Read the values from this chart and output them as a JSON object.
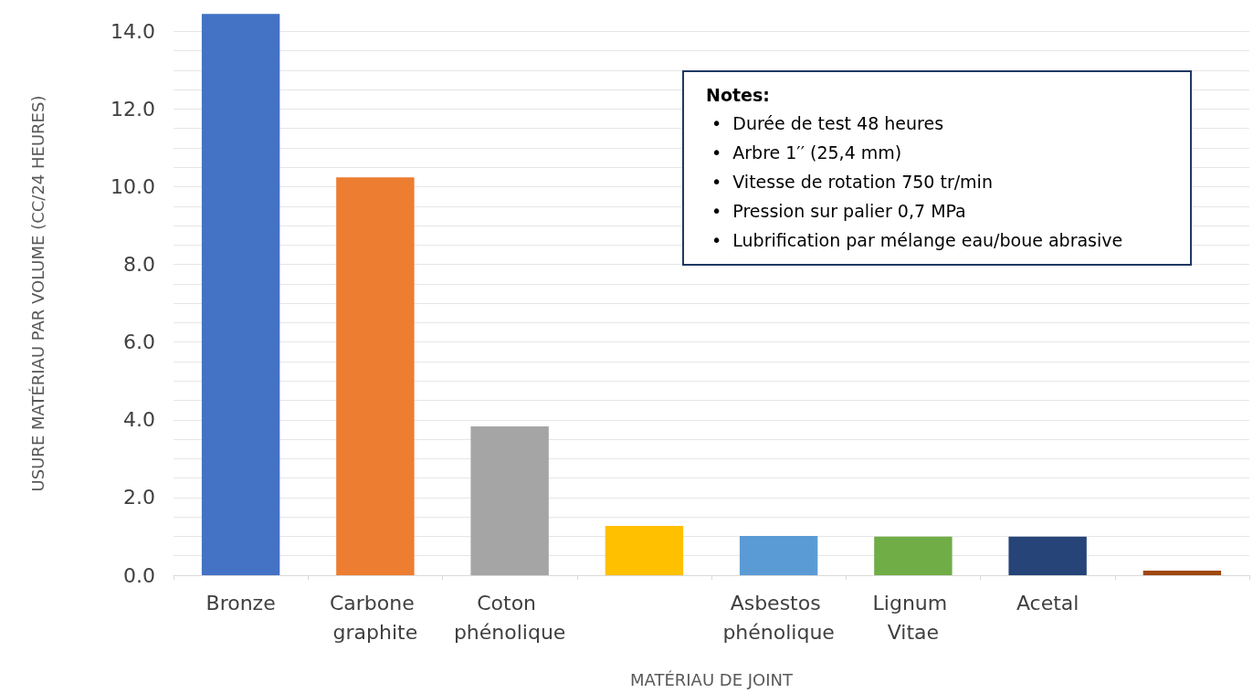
{
  "chart_data": {
    "type": "bar",
    "xlabel": "MATÉRIAU DE JOINT",
    "ylabel": "USURE MATÉRIAU PAR VOLUME (CC/24 HEURES)",
    "categories": [
      "Bronze",
      "Carbone graphite",
      "Coton phénolique",
      null,
      "Asbestos phénolique",
      "Lignum Vitae",
      "Acetal",
      null
    ],
    "values": [
      14.45,
      10.24,
      3.83,
      1.27,
      1.01,
      0.99,
      0.99,
      0.12
    ],
    "colors": [
      "#4472c4",
      "#ed7d31",
      "#a5a5a5",
      "#ffc000",
      "#5b9bd5",
      "#70ad47",
      "#264478",
      "#9e480e"
    ],
    "ylim": [
      0,
      14.5
    ],
    "yticks": [
      {
        "value": 0,
        "label": "0.0"
      },
      {
        "value": 0.5,
        "label": null
      },
      {
        "value": 1,
        "label": null
      },
      {
        "value": 1.5,
        "label": null
      },
      {
        "value": 2,
        "label": "2.0"
      },
      {
        "value": 2.5,
        "label": null
      },
      {
        "value": 3,
        "label": null
      },
      {
        "value": 3.5,
        "label": null
      },
      {
        "value": 4,
        "label": "4.0"
      },
      {
        "value": 4.5,
        "label": null
      },
      {
        "value": 5,
        "label": null
      },
      {
        "value": 5.5,
        "label": null
      },
      {
        "value": 6,
        "label": "6.0"
      },
      {
        "value": 6.5,
        "label": null
      },
      {
        "value": 7,
        "label": null
      },
      {
        "value": 7.5,
        "label": null
      },
      {
        "value": 8,
        "label": "8.0"
      },
      {
        "value": 8.5,
        "label": null
      },
      {
        "value": 9,
        "label": null
      },
      {
        "value": 9.5,
        "label": null
      },
      {
        "value": 10,
        "label": "10.0"
      },
      {
        "value": 10.5,
        "label": null
      },
      {
        "value": 11,
        "label": null
      },
      {
        "value": 11.5,
        "label": null
      },
      {
        "value": 12,
        "label": "12.0"
      },
      {
        "value": 12.5,
        "label": null
      },
      {
        "value": 13,
        "label": null
      },
      {
        "value": 13.5,
        "label": null
      },
      {
        "value": 14,
        "label": "14.0"
      }
    ],
    "grid": "y",
    "annotations": [
      "Notes:",
      "•  Durée de test 48 heures",
      "•  Arbre 1′′ (25,4 mm)",
      "•  Vitesse de rotation 750 tr/min",
      "•  Pression sur palier 0,7 MPa",
      "•  Lubrification par mélange eau/boue abrasive"
    ]
  }
}
